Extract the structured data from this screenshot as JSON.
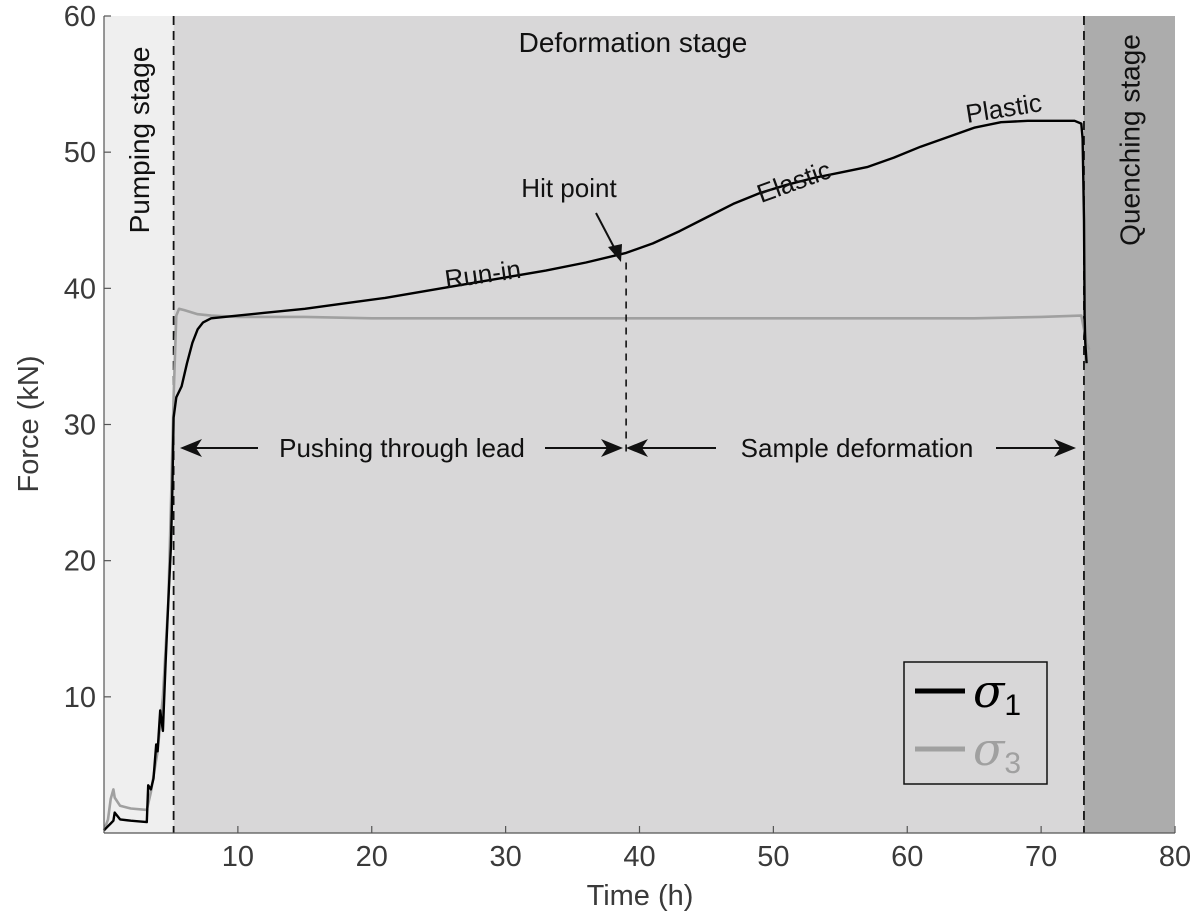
{
  "chart_data": {
    "type": "line",
    "xlabel": "Time (h)",
    "ylabel": "Force (kN)",
    "xlim": [
      0,
      80
    ],
    "ylim": [
      0,
      60
    ],
    "xticks": [
      10,
      20,
      30,
      40,
      50,
      60,
      70,
      80
    ],
    "yticks": [
      10,
      20,
      30,
      40,
      50,
      60
    ],
    "grid": false,
    "legend_position": "bottom-right",
    "stages": [
      {
        "label": "Pumping stage",
        "x_start": 0,
        "x_end": 5.2,
        "color": "#efefef",
        "orientation": "vertical"
      },
      {
        "label": "Deformation stage",
        "x_start": 5.2,
        "x_end": 73.2,
        "color": "#d8d7d8",
        "orientation": "horizontal"
      },
      {
        "label": "Quenching stage",
        "x_start": 73.2,
        "x_end": 80,
        "color": "#acacac",
        "orientation": "vertical"
      }
    ],
    "stage_boundaries": [
      5.2,
      73.2
    ],
    "series": [
      {
        "name": "σ1",
        "symbol": "σ",
        "subscript": "1",
        "color": "#000000",
        "x": [
          0,
          0.3,
          0.5,
          0.7,
          0.8,
          1.2,
          2.0,
          3.2,
          3.3,
          3.5,
          3.7,
          3.9,
          4.0,
          4.2,
          4.4,
          4.6,
          4.8,
          5.0,
          5.1,
          5.2,
          5.4,
          5.8,
          6.2,
          6.6,
          7.0,
          7.4,
          8.0,
          9.0,
          10,
          12,
          15,
          18,
          21,
          24,
          27,
          30,
          33,
          36,
          39,
          41,
          43,
          45,
          47,
          49,
          51,
          53,
          55,
          57,
          59,
          61,
          63,
          65,
          67,
          69,
          71,
          72.5,
          73.0,
          73.1,
          73.2,
          73.25,
          73.3,
          73.4
        ],
        "y": [
          0.2,
          0.5,
          0.7,
          0.9,
          1.5,
          1.0,
          0.9,
          0.8,
          3.5,
          3.2,
          4.0,
          6.5,
          6.0,
          9.0,
          7.5,
          12.5,
          17.0,
          21.0,
          25.0,
          30.5,
          32.0,
          32.8,
          34.5,
          36.0,
          37.0,
          37.5,
          37.8,
          37.9,
          38.0,
          38.2,
          38.5,
          38.9,
          39.3,
          39.8,
          40.3,
          40.8,
          41.3,
          41.9,
          42.6,
          43.3,
          44.2,
          45.2,
          46.2,
          47.0,
          47.6,
          48.1,
          48.5,
          48.9,
          49.6,
          50.4,
          51.1,
          51.8,
          52.2,
          52.3,
          52.3,
          52.3,
          52.1,
          51.0,
          45.0,
          38.0,
          36.0,
          34.5
        ]
      },
      {
        "name": "σ3",
        "symbol": "σ",
        "subscript": "3",
        "color": "#a0a0a0",
        "x": [
          0,
          0.3,
          0.5,
          0.7,
          0.8,
          1.2,
          2.0,
          3.2,
          3.5,
          4.0,
          4.4,
          4.8,
          5.0,
          5.2,
          5.4,
          5.6,
          6.0,
          7.0,
          8.0,
          10,
          15,
          20,
          25,
          30,
          35,
          40,
          45,
          50,
          55,
          60,
          65,
          70,
          73.0,
          73.2,
          73.4,
          73.6
        ],
        "y": [
          0.2,
          1.0,
          2.5,
          3.2,
          2.6,
          2.0,
          1.8,
          1.7,
          3.0,
          6.0,
          10.0,
          17.0,
          24.0,
          32.0,
          38.0,
          38.5,
          38.4,
          38.1,
          38.0,
          37.9,
          37.9,
          37.8,
          37.8,
          37.8,
          37.8,
          37.8,
          37.8,
          37.8,
          37.8,
          37.8,
          37.8,
          37.9,
          38.0,
          37.0,
          36.0,
          35.5
        ]
      }
    ],
    "hit_point_x": 39,
    "annotations": {
      "run_in": "Run-in",
      "elastic": "Elastic",
      "plastic": "Plastic",
      "hit_point": "Hit point",
      "pushing": "Pushing through lead",
      "sample_def": "Sample deformation"
    }
  }
}
